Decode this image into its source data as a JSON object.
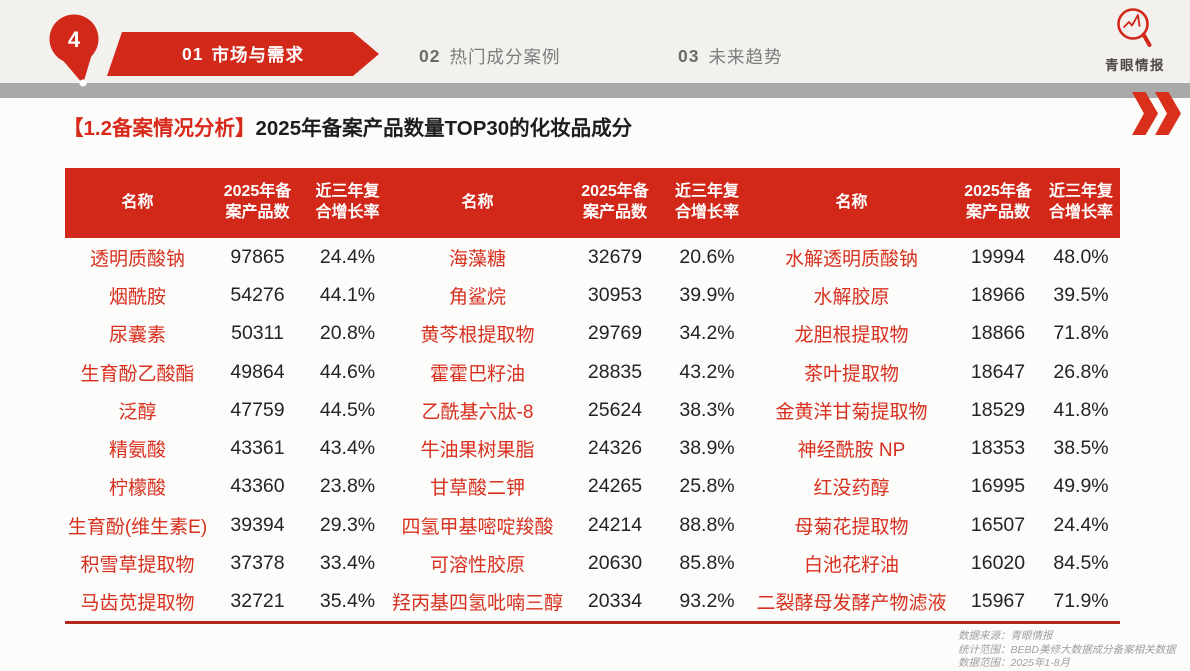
{
  "nav": {
    "page_number": "4",
    "tabs": [
      {
        "number": "01",
        "label": "市场与需求"
      },
      {
        "number": "02",
        "label": "热门成分案例"
      },
      {
        "number": "03",
        "label": "未来趋势"
      }
    ]
  },
  "logo": {
    "text": "青眼情报"
  },
  "title": {
    "tag": "【1.2备案情况分析】",
    "text": "2025年备案产品数量TOP30的化妆品成分"
  },
  "accent_color": "#d2281a",
  "table": {
    "headers": {
      "name": "名称",
      "count": "2025年备\n案产品数",
      "growth": "近三年复\n合增长率"
    },
    "groups": [
      {
        "rows": [
          {
            "name": "透明质酸钠",
            "count": "97865",
            "growth": "24.4%"
          },
          {
            "name": "烟酰胺",
            "count": "54276",
            "growth": "44.1%"
          },
          {
            "name": "尿囊素",
            "count": "50311",
            "growth": "20.8%"
          },
          {
            "name": "生育酚乙酸酯",
            "count": "49864",
            "growth": "44.6%"
          },
          {
            "name": "泛醇",
            "count": "47759",
            "growth": "44.5%"
          },
          {
            "name": "精氨酸",
            "count": "43361",
            "growth": "43.4%"
          },
          {
            "name": "柠檬酸",
            "count": "43360",
            "growth": "23.8%"
          },
          {
            "name": "生育酚(维生素E)",
            "count": "39394",
            "growth": "29.3%"
          },
          {
            "name": "积雪草提取物",
            "count": "37378",
            "growth": "33.4%"
          },
          {
            "name": "马齿苋提取物",
            "count": "32721",
            "growth": "35.4%"
          }
        ]
      },
      {
        "rows": [
          {
            "name": "海藻糖",
            "count": "32679",
            "growth": "20.6%"
          },
          {
            "name": "角鲨烷",
            "count": "30953",
            "growth": "39.9%"
          },
          {
            "name": "黄芩根提取物",
            "count": "29769",
            "growth": "34.2%"
          },
          {
            "name": "霍霍巴籽油",
            "count": "28835",
            "growth": "43.2%"
          },
          {
            "name": "乙酰基六肽-8",
            "count": "25624",
            "growth": "38.3%"
          },
          {
            "name": "牛油果树果脂",
            "count": "24326",
            "growth": "38.9%"
          },
          {
            "name": "甘草酸二钾",
            "count": "24265",
            "growth": "25.8%"
          },
          {
            "name": "四氢甲基嘧啶羧酸",
            "count": "24214",
            "growth": "88.8%"
          },
          {
            "name": "可溶性胶原",
            "count": "20630",
            "growth": "85.8%"
          },
          {
            "name": "羟丙基四氢吡喃三醇",
            "count": "20334",
            "growth": "93.2%"
          }
        ]
      },
      {
        "rows": [
          {
            "name": "水解透明质酸钠",
            "count": "19994",
            "growth": "48.0%"
          },
          {
            "name": "水解胶原",
            "count": "18966",
            "growth": "39.5%"
          },
          {
            "name": "龙胆根提取物",
            "count": "18866",
            "growth": "71.8%"
          },
          {
            "name": "茶叶提取物",
            "count": "18647",
            "growth": "26.8%"
          },
          {
            "name": "金黄洋甘菊提取物",
            "count": "18529",
            "growth": "41.8%"
          },
          {
            "name": "神经酰胺 NP",
            "count": "18353",
            "growth": "38.5%"
          },
          {
            "name": "红没药醇",
            "count": "16995",
            "growth": "49.9%"
          },
          {
            "name": "母菊花提取物",
            "count": "16507",
            "growth": "24.4%"
          },
          {
            "name": "白池花籽油",
            "count": "16020",
            "growth": "84.5%"
          },
          {
            "name": "二裂酵母发酵产物滤液",
            "count": "15967",
            "growth": "71.9%"
          }
        ]
      }
    ]
  },
  "footnote": {
    "line1": "数据来源：青眼情报",
    "line2": "统计范围：BEBD美修大数据成分备案相关数据",
    "line3": "数据范围：2025年1-8月"
  }
}
